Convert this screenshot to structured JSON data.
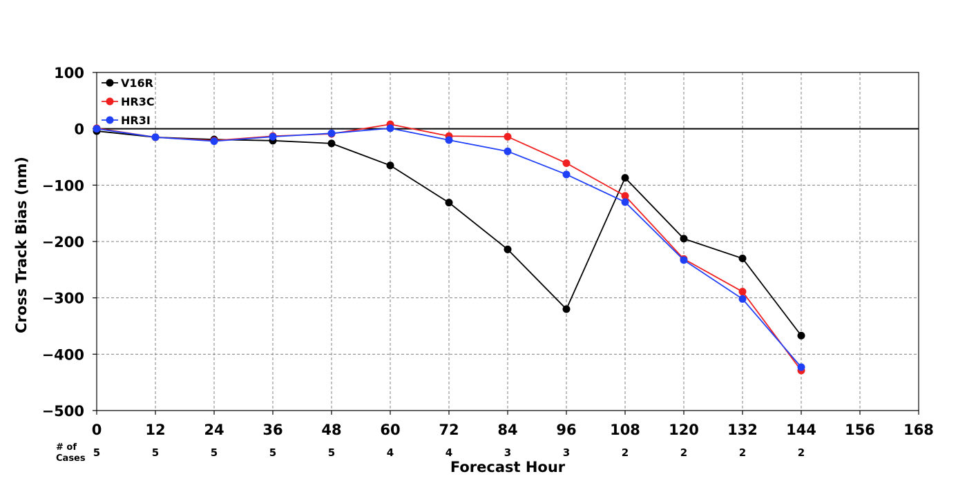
{
  "chart_data": {
    "type": "line",
    "title": "",
    "xlabel": "Forecast Hour",
    "ylabel": "Cross Track Bias (nm)",
    "xlim": [
      0,
      168
    ],
    "ylim": [
      -500,
      100
    ],
    "x_ticks": [
      0,
      12,
      24,
      36,
      48,
      60,
      72,
      84,
      96,
      108,
      120,
      132,
      144,
      156,
      168
    ],
    "y_ticks": [
      100,
      0,
      -100,
      -200,
      -300,
      -400,
      -500
    ],
    "y_tick_labels": [
      "100",
      "0",
      "−100",
      "−200",
      "−300",
      "−400",
      "−500"
    ],
    "grid": true,
    "zero_line": true,
    "legend_position": "top-left",
    "x": [
      0,
      12,
      24,
      36,
      48,
      60,
      72,
      84,
      96,
      108,
      120,
      132,
      144
    ],
    "series": [
      {
        "name": "V16R",
        "color": "#000000",
        "values": [
          -4,
          -15,
          -19,
          -21,
          -26,
          -65,
          -131,
          -214,
          -320,
          -87,
          -195,
          -230,
          -367
        ]
      },
      {
        "name": "HR3C",
        "color": "#f02020",
        "values": [
          1,
          -15,
          -21,
          -13,
          -9,
          8,
          -13,
          -14,
          -61,
          -119,
          -231,
          -289,
          -429
        ]
      },
      {
        "name": "HR3I",
        "color": "#2040f8",
        "values": [
          0,
          -15,
          -22,
          -14,
          -8,
          1,
          -20,
          -40,
          -81,
          -130,
          -233,
          -302,
          -423
        ]
      }
    ],
    "cases_label": "# of\nCases",
    "cases_label_lines": [
      "# of",
      "Cases"
    ],
    "cases": [
      "5",
      "5",
      "5",
      "5",
      "5",
      "4",
      "4",
      "3",
      "3",
      "2",
      "2",
      "2",
      "2"
    ]
  }
}
